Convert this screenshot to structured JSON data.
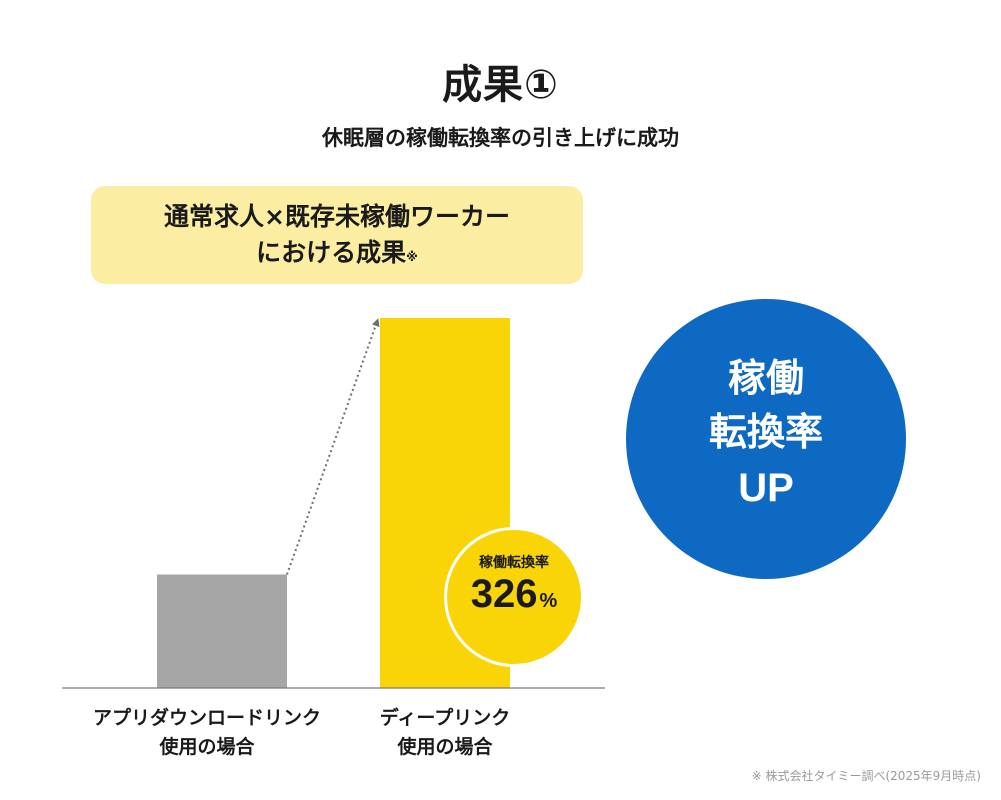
{
  "header": {
    "title": "成果①",
    "subtitle": "休眠層の稼働転換率の引き上げに成功"
  },
  "callout": {
    "line1": "通常求人×既存未稼働ワーカー",
    "line2": "における成果",
    "mark": "※"
  },
  "chart_data": {
    "type": "bar",
    "categories": [
      "アプリダウンロードリンク使用の場合",
      "ディープリンク使用の場合"
    ],
    "category_lines": [
      [
        "アプリダウンロードリンク",
        "使用の場合"
      ],
      [
        "ディープリンク",
        "使用の場合"
      ]
    ],
    "values": [
      1,
      3.26
    ],
    "colors": [
      "#a6a6a6",
      "#f9d508"
    ],
    "ylim": [
      0,
      3.26
    ],
    "annotation": {
      "label": "稼働転換率",
      "value": "326",
      "unit": "%"
    },
    "arrow": "dotted arrow from first bar top to second bar top"
  },
  "circle": {
    "line1": "稼働",
    "line2": "転換率",
    "line3": "UP",
    "color": "#0d69c1"
  },
  "footnote": "※ 株式会社タイミー調べ(2025年9月時点)"
}
